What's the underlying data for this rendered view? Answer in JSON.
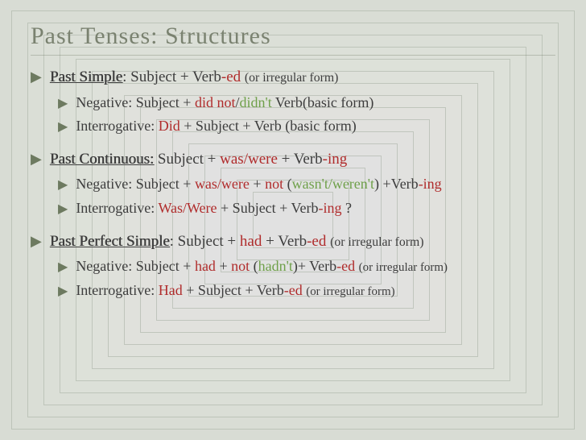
{
  "title": "Past Tenses: Structures",
  "colors": {
    "title": "#7a8270",
    "text": "#3d3d3d",
    "red": "#b02c2c",
    "green": "#6fa04a",
    "bullet": "#6d7a60",
    "bg": "#d8dcd4"
  },
  "sections": [
    {
      "tense": "Past Simple",
      "affirmative": ":  Subject + Verb|-ed| |(or irregular form)",
      "negative": "Negative:  Subject + |did not|/|didn't|  Verb(basic form)",
      "interrogative": "Interrogative:  |Did| + Subject + Verb (basic form)"
    },
    {
      "tense": "Past Continuous:",
      "affirmative": " Subject + |was/were| + Verb|-ing",
      "negative": "Negative:  Subject + |was/were| + |not| (|wasn't/weren't|) +Verb|-ing",
      "interrogative": "Interrogative:  |Was/Were|  + Subject + Verb|-ing| ?"
    },
    {
      "tense": "Past Perfect Simple",
      "affirmative": ":  Subject + |had| + Verb|-ed| |(or irregular form)",
      "negative": "Negative: Subject  +  |had| + |not| (|hadn't|)+  Verb|-ed|  |(or irregular form)",
      "interrogative": "Interrogative:  |Had| + Subject + Verb|-ed| |(or irregular form)"
    }
  ]
}
